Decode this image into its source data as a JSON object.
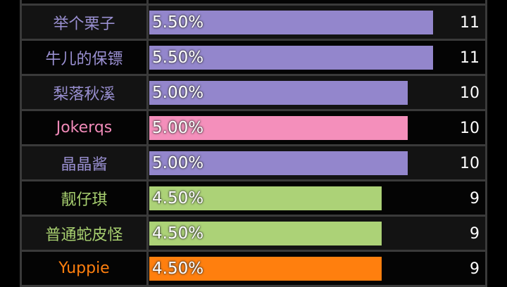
{
  "rows": [
    {
      "name": "",
      "percent": "",
      "value": "",
      "color": "#9386cc",
      "text_color": "#9a90d2",
      "pct_value": 0
    },
    {
      "name": "举个栗子",
      "percent": "5.50%",
      "value": "11",
      "color": "#9386cc",
      "text_color": "#9a90d2",
      "pct_value": 5.5
    },
    {
      "name": "牛儿的保镖",
      "percent": "5.50%",
      "value": "11",
      "color": "#9386cc",
      "text_color": "#9a90d2",
      "pct_value": 5.5
    },
    {
      "name": "梨落秋溪",
      "percent": "5.00%",
      "value": "10",
      "color": "#9386cc",
      "text_color": "#9a90d2",
      "pct_value": 5.0
    },
    {
      "name": "Jokerqs",
      "percent": "5.00%",
      "value": "10",
      "color": "#f48fbb",
      "text_color": "#f08ab8",
      "pct_value": 5.0
    },
    {
      "name": "晶晶酱",
      "percent": "5.00%",
      "value": "10",
      "color": "#9386cc",
      "text_color": "#9a90d2",
      "pct_value": 5.0
    },
    {
      "name": "靓仔琪",
      "percent": "4.50%",
      "value": "9",
      "color": "#acd277",
      "text_color": "#a8d070",
      "pct_value": 4.5
    },
    {
      "name": "普通蛇皮怪",
      "percent": "4.50%",
      "value": "9",
      "color": "#acd277",
      "text_color": "#a8d070",
      "pct_value": 4.5
    },
    {
      "name": "Yuppie",
      "percent": "4.50%",
      "value": "9",
      "color": "#ff7f0e",
      "text_color": "#ff7f0e",
      "pct_value": 4.5
    }
  ]
}
